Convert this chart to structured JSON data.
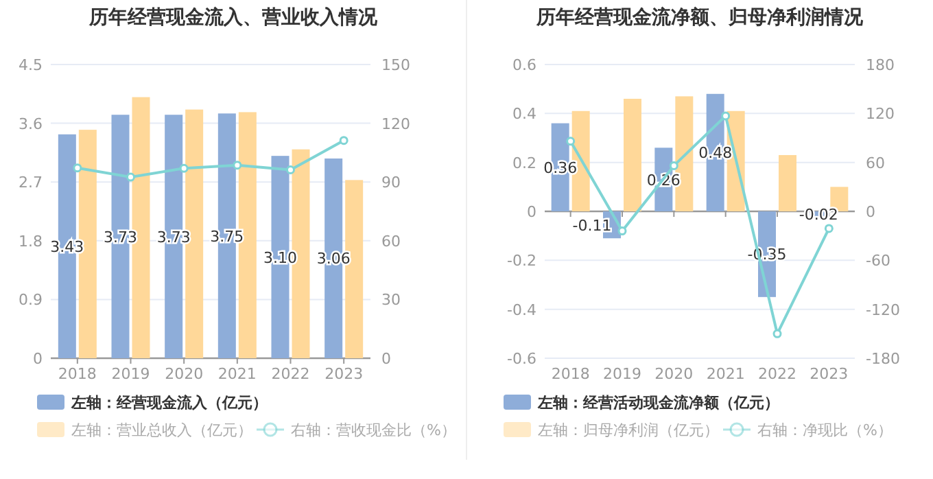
{
  "chart_data": [
    {
      "type": "bar",
      "title": "历年经营现金流入、营业收入情况",
      "categories": [
        "2018",
        "2019",
        "2020",
        "2021",
        "2022",
        "2023"
      ],
      "series": [
        {
          "name": "左轴：经营现金流入（亿元）",
          "color": "#8eadd9",
          "values": [
            3.43,
            3.73,
            3.73,
            3.75,
            3.1,
            3.06
          ],
          "value_labels": [
            "3.43",
            "3.73",
            "3.73",
            "3.75",
            "3.10",
            "3.06"
          ]
        },
        {
          "name": "左轴：营业总收入（亿元）",
          "color": "#ffd899",
          "values": [
            3.5,
            4.0,
            3.81,
            3.77,
            3.2,
            2.73
          ]
        },
        {
          "name": "右轴：营收现金比（%）",
          "type": "line",
          "axis": "y2",
          "color": "#7fd4d4",
          "marker": "circle",
          "values": [
            97.2,
            92.5,
            97,
            98.6,
            96.2,
            111.2
          ]
        }
      ],
      "ylim": [
        0,
        4.5
      ],
      "yticks": [
        0,
        0.9,
        1.8,
        2.7,
        3.6,
        4.5
      ],
      "y2lim": [
        0,
        150
      ],
      "y2ticks": [
        0,
        30,
        60,
        90,
        120,
        150
      ],
      "grid": "y",
      "legend": "bottom"
    },
    {
      "type": "bar",
      "title": "历年经营现金流净额、归母净利润情况",
      "categories": [
        "2018",
        "2019",
        "2020",
        "2021",
        "2022",
        "2023"
      ],
      "series": [
        {
          "name": "左轴：经营活动现金流净额（亿元）",
          "color": "#8eadd9",
          "values": [
            0.36,
            -0.11,
            0.26,
            0.48,
            -0.35,
            -0.02
          ],
          "value_labels": [
            "0.36",
            "-0.11",
            "0.26",
            "0.48",
            "-0.35",
            "-0.02"
          ]
        },
        {
          "name": "左轴：归母净利润（亿元）",
          "color": "#ffd899",
          "values": [
            0.41,
            0.46,
            0.47,
            0.41,
            0.23,
            0.1
          ]
        },
        {
          "name": "右轴：净现比（%）",
          "type": "line",
          "axis": "y2",
          "color": "#7fd4d4",
          "marker": "circle",
          "values": [
            86,
            -24,
            56,
            117,
            -150,
            -21
          ]
        }
      ],
      "ylim": [
        -0.6,
        0.6
      ],
      "yticks": [
        -0.6,
        -0.4,
        -0.2,
        0,
        0.2,
        0.4,
        0.6
      ],
      "y2lim": [
        -180,
        180
      ],
      "y2ticks": [
        -180,
        -120,
        -60,
        0,
        60,
        120,
        180
      ],
      "grid": "y",
      "legend": "bottom"
    }
  ]
}
